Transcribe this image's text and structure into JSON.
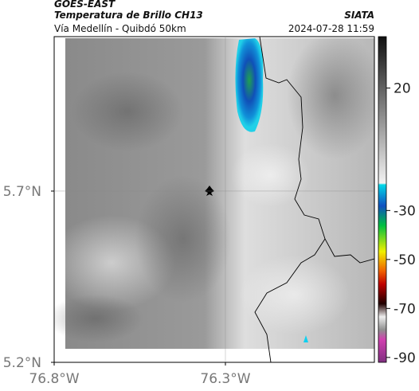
{
  "header": {
    "source": "GOES-EAST",
    "product": "Temperatura de Brillo CH13",
    "org": "SIATA",
    "region": "Vía Medellín - Quibdó 50km",
    "datetime": "2024-07-28 11:59"
  },
  "map": {
    "xlim": [
      -76.8,
      -75.865
    ],
    "ylim": [
      5.2,
      6.151
    ],
    "xticks": [
      {
        "value": -76.8,
        "label": "76.8°W"
      },
      {
        "value": -76.3,
        "label": "76.3°W"
      }
    ],
    "yticks": [
      {
        "value": 5.2,
        "label": "5.2°N"
      },
      {
        "value": 5.7,
        "label": "5.7°N"
      }
    ],
    "colorbar": {
      "lim": [
        -92,
        41
      ],
      "ticks": [
        20,
        -30,
        -50,
        -70,
        -90
      ]
    }
  }
}
